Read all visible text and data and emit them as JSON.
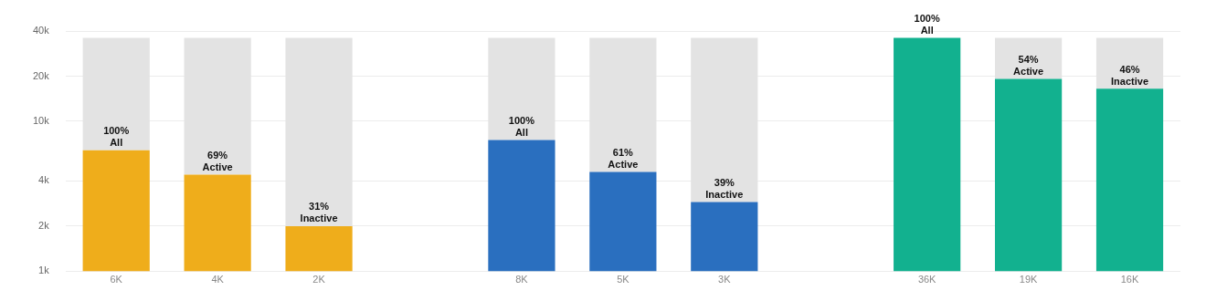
{
  "chart_data": {
    "type": "bar",
    "stacked": true,
    "log": true,
    "grid": "y",
    "legend": false,
    "categories": [
      "6K",
      "4K",
      "2K",
      null,
      "8K",
      "5K",
      "3K",
      null,
      "36K",
      "19K",
      "16K"
    ],
    "series": [
      {
        "colors": [
          "#efad1b",
          "#efad1b",
          "#efad1b",
          null,
          "#2a6fbf",
          "#2a6fbf",
          "#2a6fbf",
          null,
          "#12b18f",
          "#12b18f",
          "#12b18f"
        ],
        "values": [
          6400,
          4400,
          2000,
          null,
          7500,
          4600,
          2900,
          null,
          36000,
          19200,
          16500
        ]
      },
      {
        "color": "#e3e3e3",
        "values": [
          29600,
          31600,
          34000,
          null,
          28500,
          31400,
          33100,
          null,
          null,
          16800,
          19500
        ]
      }
    ],
    "annotations": [
      {
        "text": "100%\nAll",
        "x": "6K",
        "y": 6400
      },
      {
        "text": "69%\nActive",
        "x": "4K",
        "y": 4400
      },
      {
        "text": "31%\nInactive",
        "x": "2K",
        "y": 2000
      },
      {
        "text": "100%\nAll",
        "x": "8K",
        "y": 7500
      },
      {
        "text": "61%\nActive",
        "x": "5K",
        "y": 4600
      },
      {
        "text": "39%\nInactive",
        "x": "3K",
        "y": 2900
      },
      {
        "text": "100%\nAll",
        "x": "36K",
        "y": 36000
      },
      {
        "text": "54%\nActive",
        "x": "19K",
        "y": 19200
      },
      {
        "text": "46%\nInactive",
        "x": "16K",
        "y": 16500
      }
    ],
    "ylim": [
      1000,
      40000
    ],
    "yticks": [
      {
        "value": 1000,
        "label": "1k"
      },
      {
        "value": 2000,
        "label": "2k"
      },
      {
        "value": 4000,
        "label": "4k"
      },
      {
        "value": 10000,
        "label": "10k"
      },
      {
        "value": 20000,
        "label": "20k"
      },
      {
        "value": 40000,
        "label": "40k"
      }
    ]
  }
}
